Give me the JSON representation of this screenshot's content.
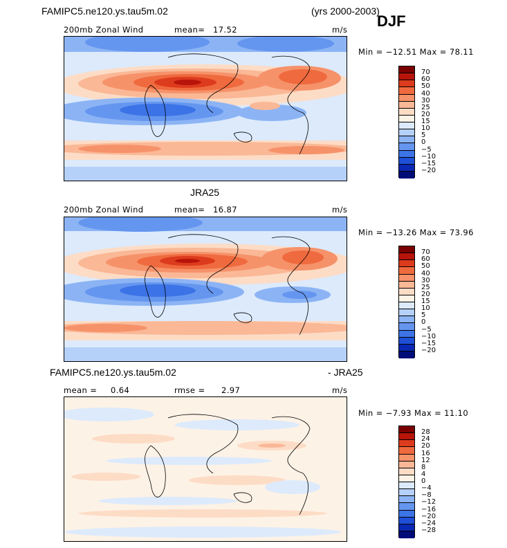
{
  "header": {
    "case_name": "FAMIPC5.ne120.ys.tau5m.02",
    "years": "(yrs 2000-2003)",
    "season": "DJF"
  },
  "panel1": {
    "title": "200mb Zonal Wind",
    "mean_label": "mean=",
    "mean_value": "17.52",
    "units": "m/s",
    "minmax": "Min = −12.51 Max =  78.11",
    "colorbar_labels": [
      "70",
      "60",
      "50",
      "40",
      "30",
      "25",
      "20",
      "15",
      "10",
      "5",
      "0",
      "−5",
      "−10",
      "−15",
      "−20"
    ]
  },
  "panel2": {
    "dataset": "JRA25",
    "title": "200mb Zonal Wind",
    "mean_label": "mean=",
    "mean_value": "16.87",
    "units": "m/s",
    "minmax": "Min = −13.26 Max =  73.96",
    "colorbar_labels": [
      "70",
      "60",
      "50",
      "40",
      "30",
      "25",
      "20",
      "15",
      "10",
      "5",
      "0",
      "−5",
      "−10",
      "−15",
      "−20"
    ]
  },
  "panel3": {
    "case_name": "FAMIPC5.ne120.ys.tau5m.02",
    "minus_label": "- JRA25",
    "mean_label": "mean =",
    "mean_value": "0.64",
    "rmse_label": "rmse =",
    "rmse_value": "2.97",
    "units": "m/s",
    "minmax": "Min =  −7.93 Max =  11.10",
    "colorbar_labels": [
      "28",
      "24",
      "20",
      "16",
      "12",
      "8",
      "4",
      "0",
      "−4",
      "−8",
      "−12",
      "−16",
      "−20",
      "−24",
      "−28"
    ]
  },
  "colors": {
    "wind_scale": [
      "#7a0000",
      "#b8140a",
      "#dd3b1d",
      "#ef6a3e",
      "#f6926a",
      "#fab896",
      "#fddcc6",
      "#fdf2e6",
      "#dceafc",
      "#b5d1fa",
      "#8cb4f5",
      "#6596ef",
      "#3c73e6",
      "#1e4fd6",
      "#0a28b4",
      "#000c78"
    ],
    "diff_scale": [
      "#7a0000",
      "#b8140a",
      "#dd3b1d",
      "#ef6a3e",
      "#f6926a",
      "#fab896",
      "#fddcc6",
      "#fdf2e6",
      "#dceafc",
      "#b5d1fa",
      "#8cb4f5",
      "#6596ef",
      "#3c73e6",
      "#1e4fd6",
      "#0a28b4",
      "#000c78"
    ]
  }
}
